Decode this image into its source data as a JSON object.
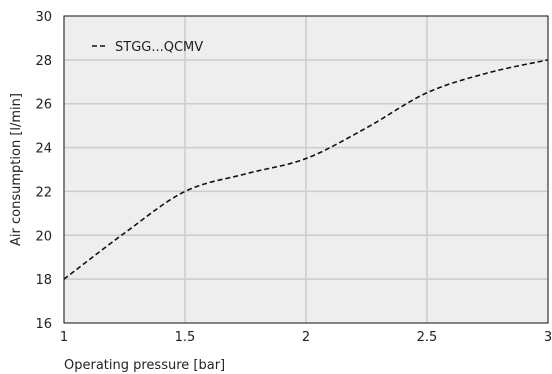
{
  "chart_data": {
    "type": "line",
    "title": "",
    "xlabel": "Operating pressure [bar]",
    "ylabel": "Air consumption [l/min]",
    "xlim": [
      1,
      3
    ],
    "ylim": [
      16,
      30
    ],
    "x_ticks": [
      1,
      1.5,
      2,
      2.5,
      3
    ],
    "y_ticks": [
      16,
      18,
      20,
      22,
      24,
      26,
      28,
      30
    ],
    "grid": true,
    "legend_position": "top-left",
    "colors": {
      "plot_background": "#eeeeee",
      "grid": "#cccccc",
      "line": "#111111"
    },
    "series": [
      {
        "name": "STGG...QCMV",
        "line_style": "dashed",
        "x": [
          1,
          1.25,
          1.5,
          1.75,
          2,
          2.25,
          2.5,
          2.75,
          3
        ],
        "y": [
          18,
          20.1,
          22,
          22.8,
          23.5,
          24.9,
          26.5,
          27.4,
          28
        ]
      }
    ]
  }
}
